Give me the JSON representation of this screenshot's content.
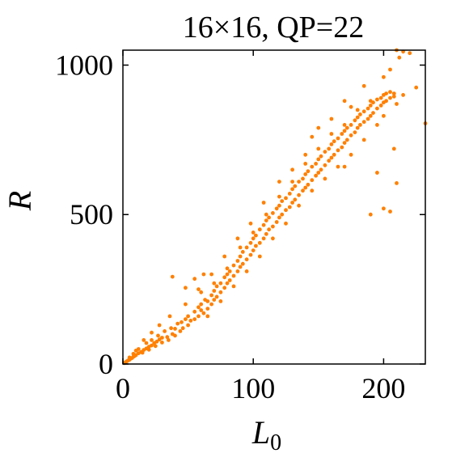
{
  "chart_data": {
    "type": "scatter",
    "title": "16×16, QP=22",
    "xlabel": "L",
    "xlabel_sub": "0",
    "ylabel": "R",
    "xlim": [
      0,
      232
    ],
    "ylim": [
      0,
      1050
    ],
    "x_ticks": [
      0,
      100,
      200
    ],
    "y_ticks": [
      0,
      500,
      1000
    ],
    "x_tick_labels": [
      "0",
      "100",
      "200"
    ],
    "y_tick_labels": [
      "0",
      "500",
      "1000"
    ],
    "grid": false,
    "marker_color": "#ff8000",
    "series": [
      {
        "points": [
          [
            1,
            3
          ],
          [
            2,
            6
          ],
          [
            3,
            9
          ],
          [
            4,
            12
          ],
          [
            5,
            14
          ],
          [
            6,
            18
          ],
          [
            7,
            20
          ],
          [
            8,
            24
          ],
          [
            9,
            27
          ],
          [
            10,
            30
          ],
          [
            12,
            36
          ],
          [
            14,
            40
          ],
          [
            16,
            47
          ],
          [
            18,
            52
          ],
          [
            20,
            58
          ],
          [
            22,
            62
          ],
          [
            24,
            70
          ],
          [
            26,
            75
          ],
          [
            28,
            82
          ],
          [
            30,
            88
          ],
          [
            5,
            22
          ],
          [
            8,
            34
          ],
          [
            10,
            45
          ],
          [
            12,
            50
          ],
          [
            15,
            38
          ],
          [
            18,
            70
          ],
          [
            20,
            48
          ],
          [
            22,
            80
          ],
          [
            25,
            60
          ],
          [
            27,
            95
          ],
          [
            30,
            72
          ],
          [
            32,
            110
          ],
          [
            34,
            90
          ],
          [
            35,
            80
          ],
          [
            37,
            120
          ],
          [
            38,
            100
          ],
          [
            40,
            118
          ],
          [
            40,
            95
          ],
          [
            42,
            135
          ],
          [
            44,
            110
          ],
          [
            45,
            140
          ],
          [
            46,
            120
          ],
          [
            48,
            150
          ],
          [
            50,
            130
          ],
          [
            50,
            160
          ],
          [
            52,
            145
          ],
          [
            55,
            175
          ],
          [
            55,
            150
          ],
          [
            58,
            190
          ],
          [
            58,
            160
          ],
          [
            60,
            200
          ],
          [
            60,
            180
          ],
          [
            62,
            170
          ],
          [
            63,
            215
          ],
          [
            65,
            210
          ],
          [
            65,
            185
          ],
          [
            68,
            230
          ],
          [
            68,
            200
          ],
          [
            70,
            245
          ],
          [
            70,
            215
          ],
          [
            72,
            260
          ],
          [
            72,
            225
          ],
          [
            75,
            270
          ],
          [
            75,
            240
          ],
          [
            78,
            290
          ],
          [
            78,
            255
          ],
          [
            80,
            300
          ],
          [
            80,
            270
          ],
          [
            82,
            310
          ],
          [
            82,
            280
          ],
          [
            85,
            330
          ],
          [
            85,
            295
          ],
          [
            88,
            345
          ],
          [
            88,
            310
          ],
          [
            90,
            360
          ],
          [
            90,
            325
          ],
          [
            92,
            375
          ],
          [
            92,
            335
          ],
          [
            95,
            390
          ],
          [
            95,
            350
          ],
          [
            98,
            405
          ],
          [
            98,
            365
          ],
          [
            100,
            420
          ],
          [
            100,
            380
          ],
          [
            102,
            430
          ],
          [
            102,
            395
          ],
          [
            105,
            450
          ],
          [
            105,
            405
          ],
          [
            108,
            465
          ],
          [
            108,
            420
          ],
          [
            110,
            480
          ],
          [
            110,
            435
          ],
          [
            112,
            490
          ],
          [
            112,
            450
          ],
          [
            115,
            505
          ],
          [
            115,
            460
          ],
          [
            118,
            520
          ],
          [
            118,
            475
          ],
          [
            120,
            530
          ],
          [
            120,
            490
          ],
          [
            122,
            545
          ],
          [
            122,
            500
          ],
          [
            125,
            555
          ],
          [
            125,
            515
          ],
          [
            128,
            570
          ],
          [
            128,
            525
          ],
          [
            130,
            585
          ],
          [
            130,
            540
          ],
          [
            132,
            595
          ],
          [
            132,
            550
          ],
          [
            135,
            610
          ],
          [
            135,
            565
          ],
          [
            138,
            620
          ],
          [
            138,
            580
          ],
          [
            140,
            635
          ],
          [
            140,
            590
          ],
          [
            142,
            645
          ],
          [
            142,
            600
          ],
          [
            145,
            660
          ],
          [
            145,
            615
          ],
          [
            148,
            670
          ],
          [
            148,
            630
          ],
          [
            150,
            685
          ],
          [
            150,
            640
          ],
          [
            152,
            695
          ],
          [
            152,
            650
          ],
          [
            155,
            710
          ],
          [
            155,
            665
          ],
          [
            158,
            720
          ],
          [
            158,
            680
          ],
          [
            160,
            735
          ],
          [
            160,
            690
          ],
          [
            162,
            745
          ],
          [
            162,
            700
          ],
          [
            165,
            755
          ],
          [
            165,
            715
          ],
          [
            168,
            770
          ],
          [
            168,
            725
          ],
          [
            170,
            780
          ],
          [
            170,
            740
          ],
          [
            172,
            790
          ],
          [
            172,
            750
          ],
          [
            175,
            800
          ],
          [
            175,
            765
          ],
          [
            178,
            815
          ],
          [
            178,
            775
          ],
          [
            180,
            825
          ],
          [
            180,
            790
          ],
          [
            182,
            835
          ],
          [
            182,
            800
          ],
          [
            185,
            845
          ],
          [
            185,
            810
          ],
          [
            188,
            855
          ],
          [
            188,
            820
          ],
          [
            190,
            865
          ],
          [
            190,
            830
          ],
          [
            192,
            875
          ],
          [
            192,
            840
          ],
          [
            195,
            885
          ],
          [
            195,
            855
          ],
          [
            198,
            890
          ],
          [
            198,
            865
          ],
          [
            200,
            900
          ],
          [
            200,
            875
          ],
          [
            202,
            905
          ],
          [
            202,
            880
          ],
          [
            205,
            910
          ],
          [
            205,
            890
          ],
          [
            208,
            905
          ],
          [
            208,
            895
          ],
          [
            60,
            240
          ],
          [
            70,
            270
          ],
          [
            80,
            320
          ],
          [
            90,
            390
          ],
          [
            100,
            440
          ],
          [
            110,
            500
          ],
          [
            120,
            560
          ],
          [
            130,
            610
          ],
          [
            140,
            670
          ],
          [
            150,
            720
          ],
          [
            160,
            770
          ],
          [
            170,
            800
          ],
          [
            180,
            850
          ],
          [
            190,
            880
          ],
          [
            95,
            310
          ],
          [
            105,
            360
          ],
          [
            115,
            420
          ],
          [
            125,
            470
          ],
          [
            135,
            530
          ],
          [
            145,
            580
          ],
          [
            155,
            620
          ],
          [
            165,
            660
          ],
          [
            175,
            700
          ],
          [
            185,
            750
          ],
          [
            195,
            800
          ],
          [
            200,
            830
          ],
          [
            65,
            160
          ],
          [
            75,
            210
          ],
          [
            85,
            260
          ],
          [
            170,
            660
          ],
          [
            38,
            292
          ],
          [
            55,
            285
          ],
          [
            48,
            255
          ],
          [
            62,
            300
          ],
          [
            98,
            470
          ],
          [
            170,
            880
          ],
          [
            185,
            930
          ],
          [
            160,
            820
          ],
          [
            150,
            790
          ],
          [
            145,
            760
          ],
          [
            175,
            860
          ],
          [
            200,
            960
          ],
          [
            205,
            985
          ],
          [
            210,
            1050
          ],
          [
            212,
            1025
          ],
          [
            215,
            1045
          ],
          [
            220,
            1040
          ],
          [
            225,
            925
          ],
          [
            232,
            805
          ],
          [
            215,
            900
          ],
          [
            210,
            870
          ],
          [
            208,
            720
          ],
          [
            210,
            605
          ],
          [
            205,
            510
          ],
          [
            200,
            520
          ],
          [
            190,
            500
          ],
          [
            195,
            640
          ],
          [
            120,
            610
          ],
          [
            130,
            650
          ],
          [
            140,
            700
          ],
          [
            108,
            540
          ],
          [
            88,
            420
          ],
          [
            78,
            360
          ],
          [
            68,
            300
          ],
          [
            58,
            250
          ],
          [
            48,
            200
          ],
          [
            36,
            160
          ],
          [
            28,
            130
          ],
          [
            22,
            105
          ],
          [
            16,
            80
          ]
        ]
      }
    ]
  }
}
